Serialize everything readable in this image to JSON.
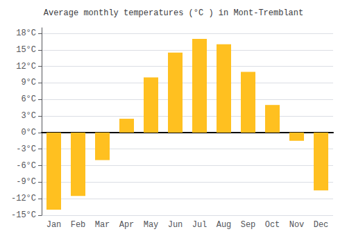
{
  "chart_data": {
    "type": "bar",
    "title": "Average monthly temperatures (°C ) in Mont-Tremblant",
    "categories": [
      "Jan",
      "Feb",
      "Mar",
      "Apr",
      "May",
      "Jun",
      "Jul",
      "Aug",
      "Sep",
      "Oct",
      "Nov",
      "Dec"
    ],
    "values": [
      -14,
      -11.5,
      -5,
      2.5,
      10,
      14.5,
      17,
      16,
      11,
      5,
      -1.5,
      -10.5
    ],
    "color": "#FFC020",
    "ylim": [
      -15,
      19
    ],
    "yticks": [
      {
        "value": -15,
        "label": "-15°C"
      },
      {
        "value": -12,
        "label": "-12°C"
      },
      {
        "value": -9,
        "label": "-9°C"
      },
      {
        "value": -6,
        "label": "-6°C"
      },
      {
        "value": -3,
        "label": "-3°C"
      },
      {
        "value": 0,
        "label": "0°C"
      },
      {
        "value": 3,
        "label": "3°C"
      },
      {
        "value": 6,
        "label": "6°C"
      },
      {
        "value": 9,
        "label": "9°C"
      },
      {
        "value": 12,
        "label": "12°C"
      },
      {
        "value": 15,
        "label": "15°C"
      },
      {
        "value": 18,
        "label": "18°C"
      }
    ],
    "grid": true
  }
}
